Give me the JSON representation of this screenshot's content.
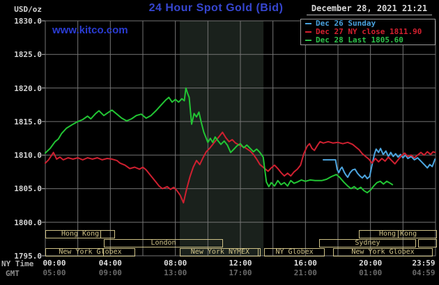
{
  "header": {
    "title": "24 Hour Spot Gold (Bid)",
    "watermark": "www.kitco.com",
    "datetime": "December 28, 2021 21:21"
  },
  "legend": {
    "items": [
      {
        "label": "- Dec 26 Sunday",
        "color": "#49a1dd"
      },
      {
        "label": "- Dec 27 NY close 1811.90",
        "color": "#d3202f"
      },
      {
        "label": "- Dec 28 Last 1805.60",
        "color": "#2cc24a"
      }
    ]
  },
  "axis": {
    "unit_label": "USD/oz",
    "x_row1_label": "NY Time",
    "x_row2_label": "GMT",
    "y_tick_labels": [
      "1830.0",
      "1825.0",
      "1820.0",
      "1815.0",
      "1810.0",
      "1805.0",
      "1800.0",
      "1795.0"
    ],
    "x_row1_ticks": [
      {
        "hour": 0,
        "label": "00:00"
      },
      {
        "hour": 4,
        "label": "04:00"
      },
      {
        "hour": 8,
        "label": "08:00"
      },
      {
        "hour": 12,
        "label": "12:00"
      },
      {
        "hour": 16,
        "label": "16:00"
      },
      {
        "hour": 20,
        "label": "20:00"
      },
      {
        "hour": 23.983,
        "label": "23:59"
      }
    ],
    "x_row2_ticks": [
      {
        "hour": 0,
        "label": "05:00"
      },
      {
        "hour": 4,
        "label": "09:00"
      },
      {
        "hour": 8,
        "label": "13:00"
      },
      {
        "hour": 12,
        "label": "17:00"
      },
      {
        "hour": 16,
        "label": "21:00"
      },
      {
        "hour": 20,
        "label": "01:00"
      },
      {
        "hour": 23.983,
        "label": "04:59"
      }
    ]
  },
  "sessions": [
    {
      "row": 0,
      "label": "Hong Kong",
      "start": 0,
      "end": 4.29,
      "divider": 3.34
    },
    {
      "row": 0,
      "label": "Hong Kong",
      "start": 19.29,
      "end": 24.09,
      "divider": 21.64
    },
    {
      "row": 1,
      "label": "London",
      "start": 3.6,
      "end": 10.93
    },
    {
      "row": 1,
      "label": "Sydney",
      "start": 16.84,
      "end": 22.8
    },
    {
      "row": 1,
      "label": "",
      "start": 22.93,
      "end": 24.09
    },
    {
      "row": 2,
      "label": "New York Globex",
      "start": 0,
      "end": 5.53,
      "divider": 3.51
    },
    {
      "row": 2,
      "label": "New York NYMEX",
      "start": 8.27,
      "end": 13.24,
      "divider": 13.03
    },
    {
      "row": 2,
      "label": "NY Globex",
      "start": 13.46,
      "end": 17.19
    },
    {
      "row": 2,
      "label": "New York Globex",
      "start": 17.7,
      "end": 23.83
    }
  ],
  "colors": {
    "background": "#000000",
    "grid": "#757575",
    "session_band": "#1a211c",
    "bar_khaki": "#cfc287"
  },
  "chart_data": {
    "type": "line",
    "title": "24 Hour Spot Gold (Bid)",
    "xlabel": "NY Time (hours 00:00-23:59)",
    "ylabel": "USD/oz",
    "ylim": [
      1795.0,
      1830.0
    ],
    "xlim_hours": [
      0,
      24
    ],
    "y_grid_step": 5.0,
    "x_grid_step_hours": 2,
    "grid": true,
    "legend_position": "top-right",
    "highlight_band_hours": [
      8.27,
      13.42
    ],
    "series": [
      {
        "name": "Dec 26 Sunday",
        "color": "#4da6e0",
        "points": [
          [
            17.1,
            1809.3
          ],
          [
            17.85,
            1809.3
          ],
          [
            17.95,
            1807.9
          ],
          [
            18.05,
            1807.4
          ],
          [
            18.15,
            1807.9
          ],
          [
            18.25,
            1808.2
          ],
          [
            18.4,
            1807.4
          ],
          [
            18.5,
            1807.0
          ],
          [
            18.6,
            1806.7
          ],
          [
            18.75,
            1807.4
          ],
          [
            18.9,
            1807.8
          ],
          [
            19.05,
            1807.9
          ],
          [
            19.2,
            1807.3
          ],
          [
            19.35,
            1806.9
          ],
          [
            19.5,
            1806.6
          ],
          [
            19.65,
            1807.0
          ],
          [
            19.8,
            1806.5
          ],
          [
            19.95,
            1806.8
          ],
          [
            20.1,
            1808.6
          ],
          [
            20.25,
            1810.2
          ],
          [
            20.35,
            1810.9
          ],
          [
            20.5,
            1810.4
          ],
          [
            20.62,
            1811.0
          ],
          [
            20.78,
            1810.1
          ],
          [
            20.95,
            1810.6
          ],
          [
            21.1,
            1809.8
          ],
          [
            21.25,
            1810.4
          ],
          [
            21.4,
            1809.8
          ],
          [
            21.55,
            1810.2
          ],
          [
            21.7,
            1809.7
          ],
          [
            21.85,
            1810.1
          ],
          [
            22.0,
            1809.6
          ],
          [
            22.15,
            1810.0
          ],
          [
            22.3,
            1809.5
          ],
          [
            22.5,
            1809.8
          ],
          [
            22.7,
            1809.3
          ],
          [
            22.9,
            1809.6
          ],
          [
            23.1,
            1809.1
          ],
          [
            23.3,
            1808.6
          ],
          [
            23.5,
            1808.1
          ],
          [
            23.65,
            1808.6
          ],
          [
            23.8,
            1808.3
          ],
          [
            23.97,
            1809.4
          ]
        ]
      },
      {
        "name": "Dec 27 NY close 1811.90",
        "color": "#cf2030",
        "points": [
          [
            0,
            1808.8
          ],
          [
            0.2,
            1809.3
          ],
          [
            0.5,
            1810.4
          ],
          [
            0.7,
            1809.4
          ],
          [
            0.9,
            1809.7
          ],
          [
            1.1,
            1809.3
          ],
          [
            1.4,
            1809.6
          ],
          [
            1.7,
            1809.4
          ],
          [
            2.0,
            1809.6
          ],
          [
            2.3,
            1809.3
          ],
          [
            2.6,
            1809.6
          ],
          [
            2.9,
            1809.4
          ],
          [
            3.2,
            1809.6
          ],
          [
            3.5,
            1809.3
          ],
          [
            3.8,
            1809.5
          ],
          [
            4.1,
            1809.4
          ],
          [
            4.4,
            1809.2
          ],
          [
            4.6,
            1808.8
          ],
          [
            4.9,
            1808.5
          ],
          [
            5.2,
            1808.0
          ],
          [
            5.5,
            1808.2
          ],
          [
            5.8,
            1807.9
          ],
          [
            6.0,
            1808.2
          ],
          [
            6.2,
            1807.8
          ],
          [
            6.5,
            1806.9
          ],
          [
            6.8,
            1806.0
          ],
          [
            7.0,
            1805.4
          ],
          [
            7.2,
            1805.0
          ],
          [
            7.5,
            1805.3
          ],
          [
            7.7,
            1804.9
          ],
          [
            7.9,
            1805.2
          ],
          [
            8.1,
            1804.7
          ],
          [
            8.3,
            1804.0
          ],
          [
            8.5,
            1802.9
          ],
          [
            8.7,
            1805.0
          ],
          [
            8.9,
            1806.8
          ],
          [
            9.1,
            1808.2
          ],
          [
            9.3,
            1809.2
          ],
          [
            9.5,
            1808.6
          ],
          [
            9.7,
            1809.6
          ],
          [
            9.9,
            1810.5
          ],
          [
            10.1,
            1811.0
          ],
          [
            10.3,
            1811.6
          ],
          [
            10.5,
            1812.2
          ],
          [
            10.7,
            1812.8
          ],
          [
            10.9,
            1813.4
          ],
          [
            11.1,
            1812.6
          ],
          [
            11.3,
            1812.0
          ],
          [
            11.5,
            1812.3
          ],
          [
            11.7,
            1811.8
          ],
          [
            12.0,
            1811.4
          ],
          [
            12.3,
            1811.1
          ],
          [
            12.6,
            1810.6
          ],
          [
            12.8,
            1810.1
          ],
          [
            13.0,
            1809.4
          ],
          [
            13.2,
            1808.6
          ],
          [
            13.5,
            1808.0
          ],
          [
            13.7,
            1807.6
          ],
          [
            13.9,
            1808.1
          ],
          [
            14.1,
            1808.5
          ],
          [
            14.3,
            1808.0
          ],
          [
            14.5,
            1807.4
          ],
          [
            14.7,
            1806.9
          ],
          [
            14.9,
            1807.3
          ],
          [
            15.1,
            1806.9
          ],
          [
            15.3,
            1807.5
          ],
          [
            15.5,
            1807.9
          ],
          [
            15.7,
            1808.5
          ],
          [
            15.9,
            1810.2
          ],
          [
            16.1,
            1811.3
          ],
          [
            16.25,
            1811.7
          ],
          [
            16.4,
            1811.0
          ],
          [
            16.55,
            1810.7
          ],
          [
            16.75,
            1811.5
          ],
          [
            16.9,
            1812.0
          ],
          [
            17.1,
            1811.8
          ],
          [
            17.4,
            1812.0
          ],
          [
            17.7,
            1811.8
          ],
          [
            18.0,
            1811.9
          ],
          [
            18.3,
            1811.7
          ],
          [
            18.6,
            1811.9
          ],
          [
            18.9,
            1811.6
          ],
          [
            19.1,
            1811.2
          ],
          [
            19.3,
            1810.8
          ],
          [
            19.5,
            1810.2
          ],
          [
            19.7,
            1809.8
          ],
          [
            19.9,
            1809.4
          ],
          [
            20.1,
            1808.8
          ],
          [
            20.3,
            1809.5
          ],
          [
            20.5,
            1809.0
          ],
          [
            20.7,
            1809.5
          ],
          [
            20.9,
            1809.1
          ],
          [
            21.1,
            1809.7
          ],
          [
            21.3,
            1809.2
          ],
          [
            21.5,
            1808.7
          ],
          [
            21.7,
            1809.3
          ],
          [
            21.9,
            1809.9
          ],
          [
            22.1,
            1810.3
          ],
          [
            22.3,
            1809.8
          ],
          [
            22.5,
            1810.0
          ],
          [
            22.7,
            1809.6
          ],
          [
            22.9,
            1810.0
          ],
          [
            23.1,
            1810.4
          ],
          [
            23.3,
            1810.0
          ],
          [
            23.5,
            1810.5
          ],
          [
            23.7,
            1810.1
          ],
          [
            23.85,
            1810.5
          ],
          [
            23.97,
            1810.4
          ]
        ]
      },
      {
        "name": "Dec 28 Last 1805.60",
        "color": "#22c534",
        "points": [
          [
            0,
            1810.3
          ],
          [
            0.3,
            1811.0
          ],
          [
            0.6,
            1812.0
          ],
          [
            0.8,
            1812.4
          ],
          [
            1.0,
            1813.2
          ],
          [
            1.3,
            1814.0
          ],
          [
            1.7,
            1814.6
          ],
          [
            2.0,
            1815.0
          ],
          [
            2.3,
            1815.3
          ],
          [
            2.6,
            1815.8
          ],
          [
            2.8,
            1815.4
          ],
          [
            3.1,
            1816.2
          ],
          [
            3.3,
            1816.6
          ],
          [
            3.6,
            1815.9
          ],
          [
            3.9,
            1816.4
          ],
          [
            4.1,
            1816.7
          ],
          [
            4.4,
            1816.1
          ],
          [
            4.7,
            1815.5
          ],
          [
            5.0,
            1815.1
          ],
          [
            5.3,
            1815.4
          ],
          [
            5.6,
            1815.9
          ],
          [
            5.9,
            1816.1
          ],
          [
            6.2,
            1815.5
          ],
          [
            6.5,
            1815.9
          ],
          [
            6.8,
            1816.6
          ],
          [
            7.1,
            1817.4
          ],
          [
            7.4,
            1818.2
          ],
          [
            7.6,
            1818.6
          ],
          [
            7.8,
            1817.9
          ],
          [
            8.0,
            1818.3
          ],
          [
            8.2,
            1817.9
          ],
          [
            8.4,
            1818.4
          ],
          [
            8.55,
            1818.1
          ],
          [
            8.65,
            1820.0
          ],
          [
            8.75,
            1819.2
          ],
          [
            8.85,
            1818.6
          ],
          [
            9.0,
            1814.6
          ],
          [
            9.15,
            1816.2
          ],
          [
            9.3,
            1815.7
          ],
          [
            9.45,
            1816.4
          ],
          [
            9.6,
            1814.8
          ],
          [
            9.75,
            1813.4
          ],
          [
            10.0,
            1811.9
          ],
          [
            10.15,
            1812.5
          ],
          [
            10.3,
            1811.9
          ],
          [
            10.45,
            1812.7
          ],
          [
            10.6,
            1812.2
          ],
          [
            10.8,
            1811.6
          ],
          [
            11.0,
            1812.1
          ],
          [
            11.2,
            1811.5
          ],
          [
            11.4,
            1810.4
          ],
          [
            11.6,
            1810.9
          ],
          [
            11.8,
            1811.4
          ],
          [
            12.0,
            1811.7
          ],
          [
            12.2,
            1811.1
          ],
          [
            12.4,
            1811.5
          ],
          [
            12.6,
            1811.0
          ],
          [
            12.8,
            1810.5
          ],
          [
            13.0,
            1810.9
          ],
          [
            13.2,
            1810.4
          ],
          [
            13.4,
            1809.7
          ],
          [
            13.6,
            1806.0
          ],
          [
            13.75,
            1805.3
          ],
          [
            13.9,
            1805.9
          ],
          [
            14.1,
            1805.4
          ],
          [
            14.3,
            1806.2
          ],
          [
            14.5,
            1805.6
          ],
          [
            14.7,
            1805.9
          ],
          [
            14.9,
            1805.4
          ],
          [
            15.1,
            1806.2
          ],
          [
            15.3,
            1805.8
          ],
          [
            15.5,
            1806.0
          ],
          [
            15.75,
            1806.3
          ],
          [
            16.0,
            1806.1
          ],
          [
            16.3,
            1806.3
          ],
          [
            16.6,
            1806.2
          ],
          [
            17.0,
            1806.2
          ],
          [
            17.3,
            1806.4
          ],
          [
            17.6,
            1806.8
          ],
          [
            17.9,
            1807.1
          ],
          [
            18.1,
            1806.7
          ],
          [
            18.35,
            1806.0
          ],
          [
            18.6,
            1805.4
          ],
          [
            18.8,
            1805.0
          ],
          [
            19.0,
            1805.3
          ],
          [
            19.2,
            1804.9
          ],
          [
            19.4,
            1805.2
          ],
          [
            19.6,
            1804.7
          ],
          [
            19.8,
            1804.4
          ],
          [
            20.0,
            1804.8
          ],
          [
            20.2,
            1805.4
          ],
          [
            20.4,
            1805.9
          ],
          [
            20.6,
            1806.1
          ],
          [
            20.8,
            1805.7
          ],
          [
            21.0,
            1806.1
          ],
          [
            21.15,
            1805.9
          ],
          [
            21.35,
            1805.6
          ]
        ]
      }
    ]
  }
}
